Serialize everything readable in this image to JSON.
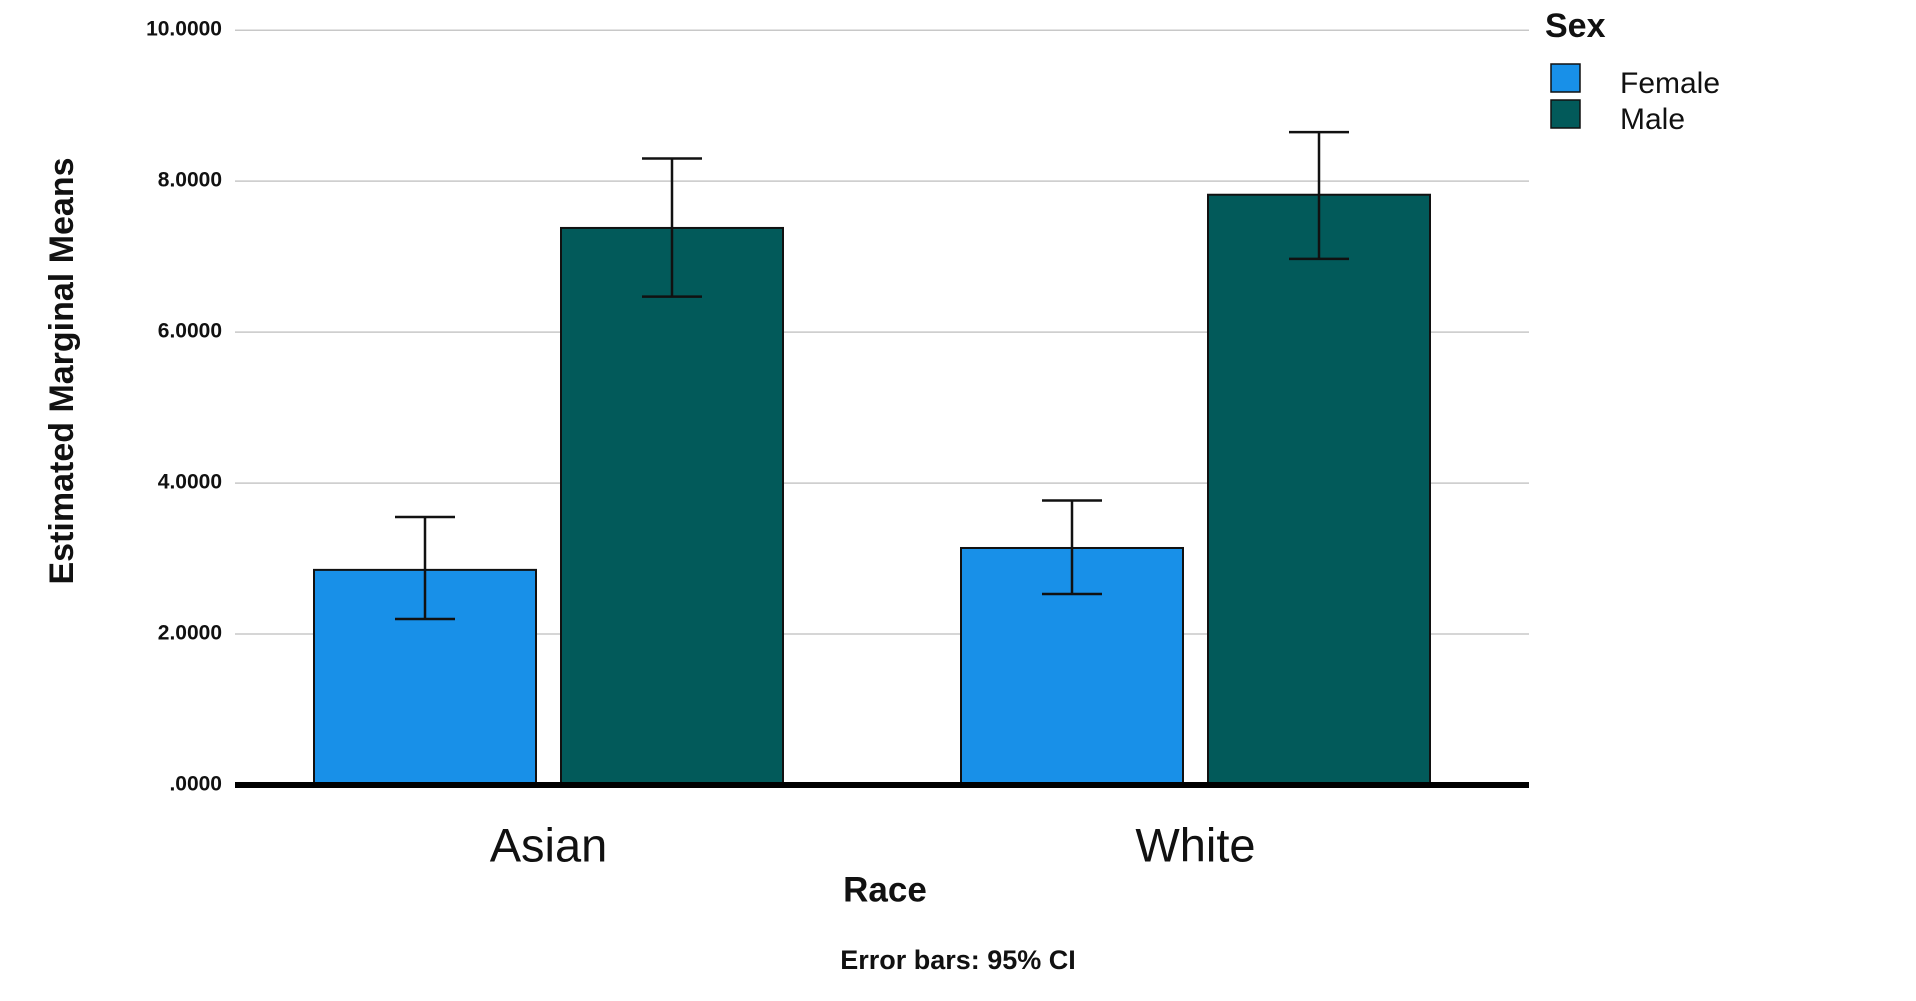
{
  "chart_data": {
    "type": "bar",
    "x_label": "Race",
    "y_label": "Estimated Marginal Means",
    "note": "Error bars: 95% CI",
    "legend_title": "Sex",
    "legend_position": "top-right",
    "categories": [
      "Asian",
      "White"
    ],
    "series": [
      {
        "name": "Female",
        "color": "#1890e8",
        "values": [
          2.85,
          3.14
        ],
        "ci_low": [
          2.2,
          2.53
        ],
        "ci_high": [
          3.55,
          3.77
        ]
      },
      {
        "name": "Male",
        "color": "#025a5a",
        "values": [
          7.38,
          7.82
        ],
        "ci_low": [
          6.47,
          6.97
        ],
        "ci_high": [
          8.3,
          8.65
        ]
      }
    ],
    "ylim": [
      0,
      10.4
    ],
    "yticks": [
      {
        "value": 0,
        "label": ".0000"
      },
      {
        "value": 2,
        "label": "2.0000"
      },
      {
        "value": 4,
        "label": "4.0000"
      },
      {
        "value": 6,
        "label": "6.0000"
      },
      {
        "value": 8,
        "label": "8.0000"
      },
      {
        "value": 10,
        "label": "10.0000"
      }
    ],
    "grid": true
  }
}
